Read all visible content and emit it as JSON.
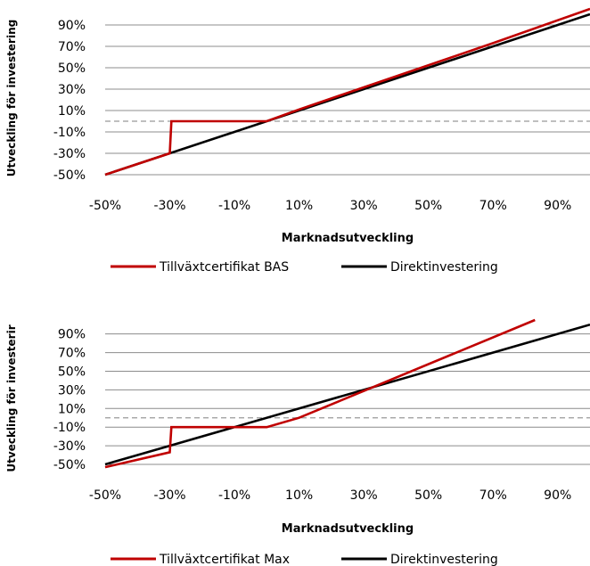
{
  "chart_data": [
    {
      "type": "line",
      "title": "",
      "xlabel": "Marknadsutveckling",
      "ylabel": "Utveckling för investering",
      "x_ticks": [
        "-50%",
        "-30%",
        "-10%",
        "10%",
        "30%",
        "50%",
        "70%",
        "90%"
      ],
      "y_ticks": [
        "90%",
        "70%",
        "50%",
        "30%",
        "10%",
        "-10%",
        "-30%",
        "-50%"
      ],
      "xlim": [
        -50,
        100
      ],
      "ylim": [
        -50,
        105
      ],
      "reference_line_y": 0,
      "grid": true,
      "legend_position": "bottom",
      "series": [
        {
          "name": "Tillväxtcertifikat BAS",
          "color": "#c00000",
          "points": [
            [
              -50,
              -50
            ],
            [
              -30,
              -30
            ],
            [
              -29.5,
              0
            ],
            [
              0,
              0
            ],
            [
              10,
              11
            ],
            [
              70,
              73
            ],
            [
              100,
              105
            ]
          ]
        },
        {
          "name": "Direktinvestering",
          "color": "#000000",
          "points": [
            [
              -50,
              -50
            ],
            [
              100,
              100
            ]
          ]
        }
      ]
    },
    {
      "type": "line",
      "title": "",
      "xlabel": "Marknadsutveckling",
      "ylabel": "Utveckling för investerir",
      "x_ticks": [
        "-50%",
        "-30%",
        "-10%",
        "10%",
        "30%",
        "50%",
        "70%",
        "90%"
      ],
      "y_ticks": [
        "90%",
        "70%",
        "50%",
        "30%",
        "10%",
        "-10%",
        "-30%",
        "-50%"
      ],
      "xlim": [
        -50,
        100
      ],
      "ylim": [
        -50,
        105
      ],
      "reference_line_y": 0,
      "grid": true,
      "legend_position": "bottom",
      "series": [
        {
          "name": "Tillväxtcertifikat Max",
          "color": "#c00000",
          "points": [
            [
              -50,
              -53
            ],
            [
              -30,
              -37
            ],
            [
              -29.5,
              -10
            ],
            [
              0,
              -10
            ],
            [
              10,
              0
            ],
            [
              83,
              105
            ]
          ]
        },
        {
          "name": "Direktinvestering",
          "color": "#000000",
          "points": [
            [
              -50,
              -50
            ],
            [
              100,
              100
            ]
          ]
        }
      ]
    }
  ]
}
